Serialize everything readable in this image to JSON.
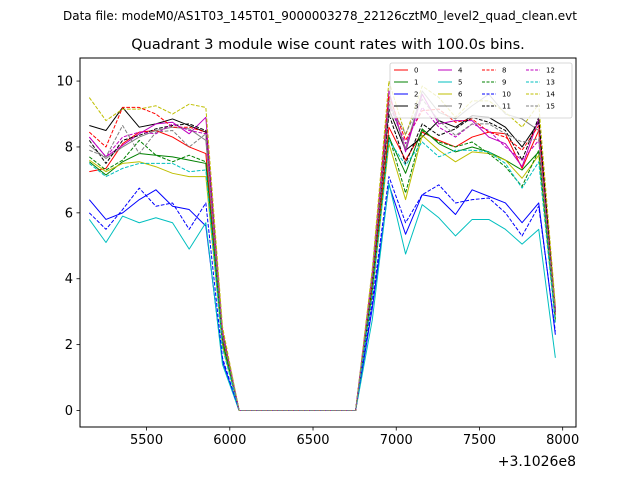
{
  "chart_data": {
    "type": "line",
    "suptitle": "Data file: modeM0/AS1T03_145T01_9000003278_22126cztM0_level2_quad_clean.evt",
    "title": "Quadrant 3 module wise count rates with 100.0s bins.",
    "xlabel": "",
    "ylabel": "",
    "x_offset_label": "+3.1026e8",
    "xlim": [
      5100,
      8080
    ],
    "ylim": [
      -0.5,
      10.7
    ],
    "xticks": [
      5500,
      6000,
      6500,
      7000,
      7500,
      8000
    ],
    "yticks": [
      0,
      2,
      4,
      6,
      8,
      10
    ],
    "xtick_labels": [
      "5500",
      "6000",
      "6500",
      "7000",
      "7500",
      "8000"
    ],
    "ytick_labels": [
      "0",
      "2",
      "4",
      "6",
      "8",
      "10"
    ],
    "x": [
      5156,
      5256,
      5356,
      5456,
      5556,
      5656,
      5756,
      5856,
      5956,
      6056,
      6156,
      6256,
      6356,
      6456,
      6556,
      6656,
      6756,
      6856,
      6956,
      7056,
      7156,
      7256,
      7356,
      7456,
      7556,
      7656,
      7756,
      7856,
      7956
    ],
    "series": [
      {
        "name": "0",
        "color": "#ff0000",
        "dash": false,
        "values": [
          7.25,
          7.35,
          8.1,
          8.45,
          8.5,
          8.3,
          8.0,
          7.8,
          2.2,
          0,
          0,
          0,
          0,
          0,
          0,
          0,
          0,
          3.8,
          8.6,
          7.6,
          8.45,
          8.2,
          8.0,
          8.3,
          8.45,
          8.4,
          7.35,
          8.5,
          2.9
        ]
      },
      {
        "name": "1",
        "color": "#008000",
        "dash": false,
        "values": [
          7.55,
          7.15,
          7.55,
          7.8,
          7.75,
          7.7,
          7.6,
          7.5,
          2.05,
          0,
          0,
          0,
          0,
          0,
          0,
          0,
          0,
          3.6,
          8.3,
          7.2,
          8.55,
          8.1,
          7.85,
          8.0,
          7.85,
          7.6,
          7.3,
          7.85,
          2.75
        ]
      },
      {
        "name": "2",
        "color": "#0000ff",
        "dash": false,
        "values": [
          6.4,
          5.8,
          6.0,
          6.4,
          6.7,
          6.2,
          6.1,
          5.6,
          1.5,
          0,
          0,
          0,
          0,
          0,
          0,
          0,
          0,
          3.1,
          6.85,
          5.35,
          6.55,
          6.45,
          5.95,
          6.7,
          6.5,
          6.3,
          5.7,
          6.3,
          2.3
        ]
      },
      {
        "name": "3",
        "color": "#000000",
        "dash": false,
        "values": [
          8.65,
          8.5,
          9.2,
          8.6,
          8.7,
          8.85,
          8.65,
          8.45,
          2.3,
          0,
          0,
          0,
          0,
          0,
          0,
          0,
          0,
          4.0,
          9.15,
          7.9,
          8.3,
          8.8,
          8.6,
          8.95,
          8.9,
          8.6,
          8.0,
          8.75,
          3.0
        ]
      },
      {
        "name": "4",
        "color": "#bf00bf",
        "dash": false,
        "values": [
          8.3,
          7.7,
          8.05,
          8.4,
          8.7,
          8.75,
          8.4,
          8.9,
          2.4,
          0,
          0,
          0,
          0,
          0,
          0,
          0,
          0,
          4.2,
          9.7,
          7.85,
          9.6,
          8.7,
          8.8,
          8.8,
          8.3,
          8.1,
          7.4,
          8.85,
          3.1
        ]
      },
      {
        "name": "5",
        "color": "#00bfbf",
        "dash": false,
        "values": [
          5.8,
          5.1,
          5.9,
          5.7,
          5.85,
          5.7,
          4.9,
          5.7,
          1.4,
          0,
          0,
          0,
          0,
          0,
          0,
          0,
          0,
          2.75,
          6.9,
          4.75,
          6.25,
          5.85,
          5.3,
          5.8,
          5.8,
          5.5,
          5.05,
          5.5,
          1.6
        ]
      },
      {
        "name": "6",
        "color": "#bfbf00",
        "dash": false,
        "values": [
          7.6,
          7.25,
          7.5,
          7.55,
          7.4,
          7.2,
          7.1,
          7.1,
          1.95,
          0,
          0,
          0,
          0,
          0,
          0,
          0,
          0,
          3.5,
          8.1,
          6.4,
          8.35,
          7.9,
          7.55,
          7.85,
          7.8,
          7.6,
          7.05,
          7.75,
          2.7
        ]
      },
      {
        "name": "7",
        "color": "#808080",
        "dash": false,
        "values": [
          8.05,
          7.65,
          8.0,
          8.3,
          8.5,
          8.6,
          8.55,
          8.2,
          2.3,
          0,
          0,
          0,
          0,
          0,
          0,
          0,
          0,
          4.1,
          9.45,
          7.95,
          9.7,
          9.05,
          8.85,
          9.25,
          9.6,
          9.0,
          8.85,
          8.5,
          3.0
        ]
      },
      {
        "name": "8",
        "color": "#ff0000",
        "dash": true,
        "values": [
          8.45,
          8.0,
          9.2,
          9.2,
          9.0,
          8.6,
          8.6,
          8.45,
          2.4,
          0,
          0,
          0,
          0,
          0,
          0,
          0,
          0,
          4.1,
          9.55,
          8.2,
          9.1,
          9.15,
          8.75,
          8.85,
          8.45,
          8.3,
          7.9,
          8.65,
          3.05
        ]
      },
      {
        "name": "9",
        "color": "#008000",
        "dash": true,
        "values": [
          7.7,
          7.3,
          7.6,
          8.2,
          7.75,
          7.55,
          7.75,
          7.55,
          2.1,
          0,
          0,
          0,
          0,
          0,
          0,
          0,
          0,
          3.6,
          8.35,
          6.6,
          8.5,
          8.15,
          8.0,
          8.15,
          7.8,
          7.4,
          6.8,
          7.9,
          2.75
        ]
      },
      {
        "name": "10",
        "color": "#0000ff",
        "dash": true,
        "values": [
          6.0,
          5.5,
          6.1,
          6.75,
          6.2,
          6.3,
          5.5,
          6.3,
          1.6,
          0,
          0,
          0,
          0,
          0,
          0,
          0,
          0,
          3.3,
          7.1,
          5.7,
          6.55,
          6.85,
          6.3,
          6.4,
          6.45,
          6.0,
          5.3,
          6.2,
          2.4
        ]
      },
      {
        "name": "11",
        "color": "#000000",
        "dash": true,
        "values": [
          8.2,
          7.5,
          8.2,
          8.35,
          8.55,
          8.65,
          8.7,
          8.5,
          2.35,
          0,
          0,
          0,
          0,
          0,
          0,
          0,
          0,
          4.0,
          9.0,
          7.5,
          8.7,
          8.35,
          8.55,
          8.9,
          8.75,
          8.5,
          7.6,
          8.9,
          3.0
        ]
      },
      {
        "name": "12",
        "color": "#bf00bf",
        "dash": true,
        "values": [
          8.3,
          7.7,
          8.3,
          8.45,
          8.4,
          8.7,
          8.5,
          8.4,
          2.35,
          0,
          0,
          0,
          0,
          0,
          0,
          0,
          0,
          4.1,
          9.3,
          8.1,
          9.2,
          8.6,
          8.3,
          8.7,
          8.5,
          8.0,
          7.6,
          8.2,
          3.0
        ]
      },
      {
        "name": "13",
        "color": "#00bfbf",
        "dash": true,
        "values": [
          7.5,
          7.1,
          7.35,
          7.5,
          7.5,
          7.5,
          7.25,
          7.3,
          1.9,
          0,
          0,
          0,
          0,
          0,
          0,
          0,
          0,
          3.55,
          8.2,
          7.45,
          8.15,
          7.7,
          7.9,
          7.9,
          7.85,
          7.5,
          6.75,
          7.55,
          2.65
        ]
      },
      {
        "name": "14",
        "color": "#bfbf00",
        "dash": true,
        "values": [
          9.5,
          8.8,
          9.15,
          9.15,
          9.25,
          9.0,
          9.3,
          9.2,
          2.55,
          0,
          0,
          0,
          0,
          0,
          0,
          0,
          0,
          4.3,
          10.0,
          8.35,
          9.85,
          9.5,
          8.9,
          9.4,
          9.4,
          9.05,
          8.6,
          9.3,
          3.2
        ]
      },
      {
        "name": "15",
        "color": "#808080",
        "dash": true,
        "values": [
          7.9,
          7.7,
          8.65,
          7.8,
          8.45,
          8.5,
          8.0,
          8.4,
          2.3,
          0,
          0,
          0,
          0,
          0,
          0,
          0,
          0,
          4.0,
          9.3,
          8.4,
          9.45,
          8.8,
          8.35,
          8.7,
          8.7,
          8.4,
          8.15,
          8.25,
          2.95
        ]
      }
    ]
  }
}
